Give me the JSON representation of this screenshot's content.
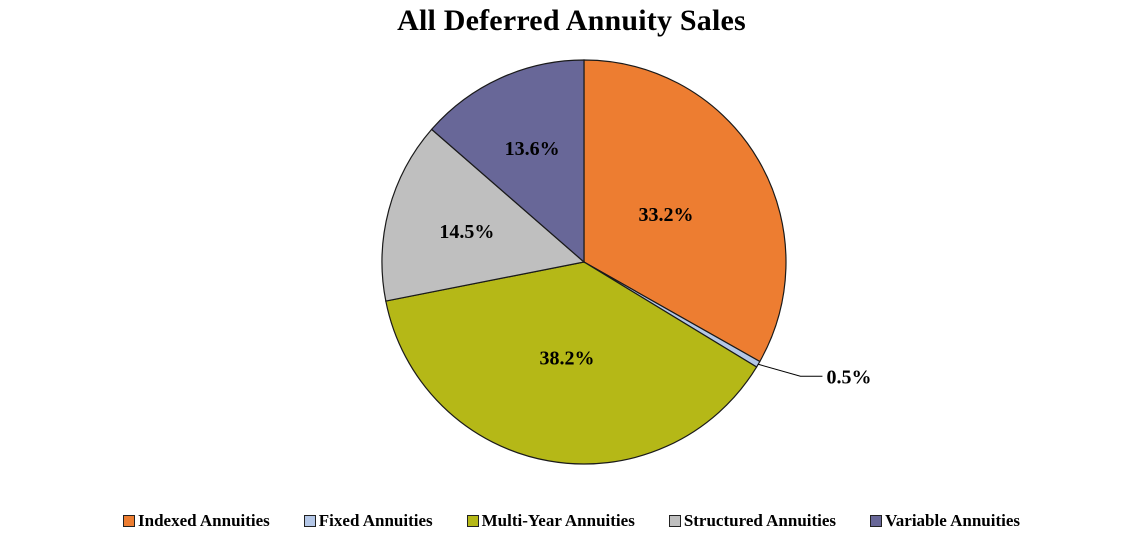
{
  "chart_data": {
    "type": "pie",
    "title": "All Deferred Annuity Sales",
    "legend_position": "bottom",
    "slices": [
      {
        "name": "Indexed Annuities",
        "value": 33.2,
        "label": "33.2%",
        "color": "#ED7D31"
      },
      {
        "name": "Fixed Annuities",
        "value": 0.5,
        "label": "0.5%",
        "color": "#B4C7E7"
      },
      {
        "name": "Multi-Year Annuities",
        "value": 38.2,
        "label": "38.2%",
        "color": "#B5B817"
      },
      {
        "name": "Structured Annuities",
        "value": 14.5,
        "label": "14.5%",
        "color": "#BFBFBF"
      },
      {
        "name": "Variable Annuities",
        "value": 13.6,
        "label": "13.6%",
        "color": "#686798"
      }
    ]
  }
}
